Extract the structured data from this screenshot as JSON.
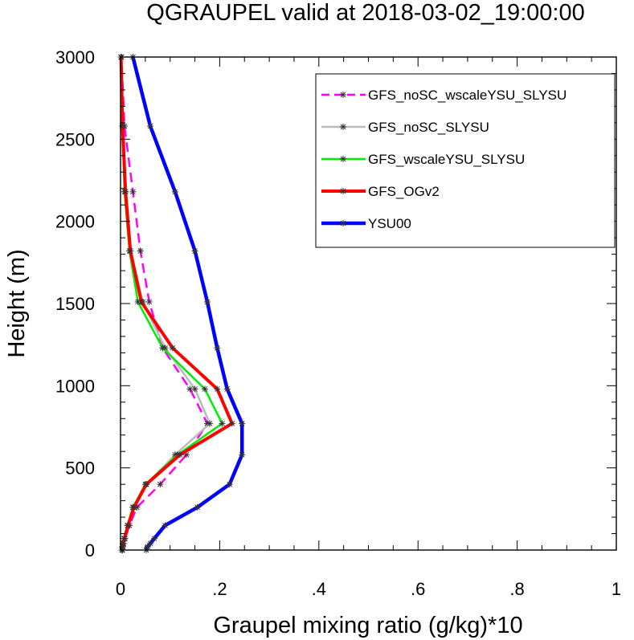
{
  "chart_data": {
    "type": "line",
    "title": "QGRAUPEL valid at 2018-03-02_19:00:00",
    "xlabel": "Graupel mixing ratio (g/kg)*10",
    "ylabel": "Height (m)",
    "xlim": [
      0,
      1
    ],
    "ylim": [
      0,
      3000
    ],
    "x_ticks": [
      "0",
      ".2",
      ".4",
      ".6",
      ".8",
      "1"
    ],
    "y_ticks": [
      "0",
      "500",
      "1000",
      "1500",
      "2000",
      "2500",
      "3000"
    ],
    "legend_position": "top-right",
    "grid": false,
    "heights": [
      0,
      20,
      40,
      70,
      150,
      260,
      400,
      580,
      770,
      980,
      1230,
      1510,
      1820,
      2180,
      2580,
      3000
    ],
    "series": [
      {
        "name": "GFS_noSC_wscaleYSU_SLYSU",
        "color": "#ff00ff",
        "dash": "dashed",
        "values": [
          0.004,
          0.005,
          0.006,
          0.009,
          0.018,
          0.033,
          0.08,
          0.133,
          0.175,
          0.14,
          0.085,
          0.058,
          0.04,
          0.025,
          0.008,
          0.002
        ]
      },
      {
        "name": "GFS_noSC_SLYSU",
        "color": "#bbbbbb",
        "dash": "solid",
        "values": [
          0.003,
          0.004,
          0.005,
          0.008,
          0.015,
          0.025,
          0.052,
          0.11,
          0.18,
          0.15,
          0.09,
          0.045,
          0.02,
          0.01,
          0.004,
          0.001
        ]
      },
      {
        "name": "GFS_wscaleYSU_SLYSU",
        "color": "#00ee00",
        "dash": "solid",
        "values": [
          0.003,
          0.004,
          0.005,
          0.007,
          0.014,
          0.025,
          0.05,
          0.115,
          0.205,
          0.17,
          0.085,
          0.035,
          0.018,
          0.008,
          0.004,
          0.001
        ]
      },
      {
        "name": "GFS_OGv2",
        "color": "#ff0000",
        "dash": "solid",
        "values": [
          0.003,
          0.004,
          0.005,
          0.008,
          0.015,
          0.027,
          0.052,
          0.12,
          0.225,
          0.195,
          0.105,
          0.042,
          0.02,
          0.01,
          0.004,
          0.001
        ]
      },
      {
        "name": "YSU00",
        "color": "#0000ff",
        "dash": "solid",
        "values": [
          0.052,
          0.055,
          0.06,
          0.068,
          0.09,
          0.155,
          0.22,
          0.245,
          0.245,
          0.215,
          0.195,
          0.175,
          0.15,
          0.11,
          0.06,
          0.025
        ]
      }
    ]
  }
}
